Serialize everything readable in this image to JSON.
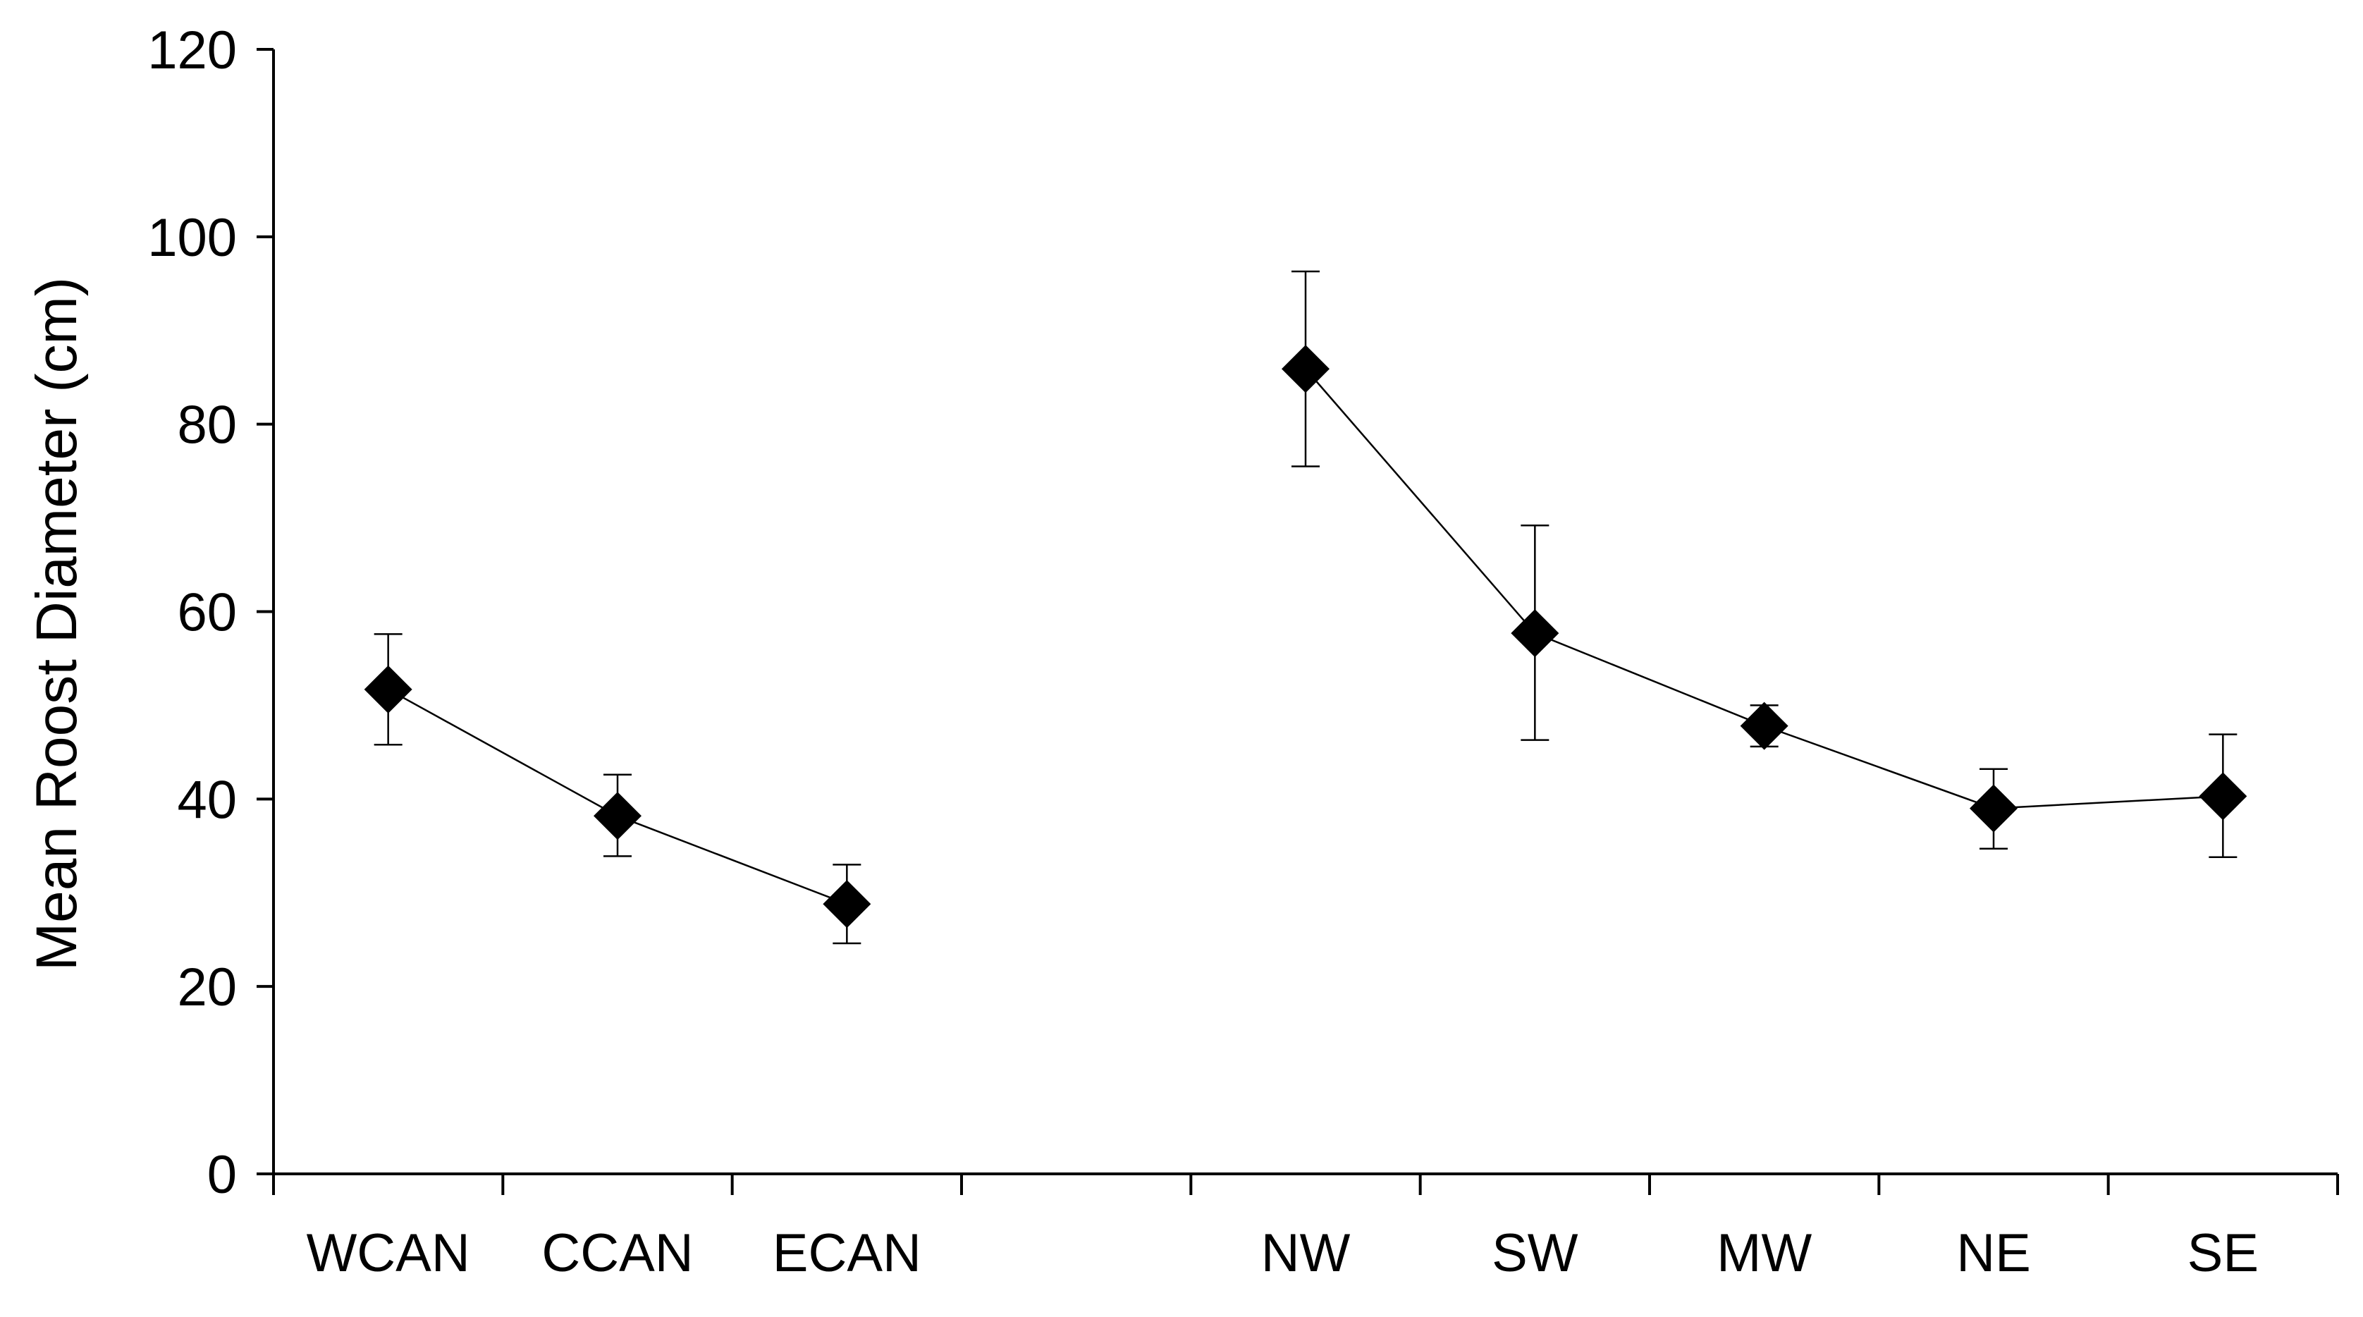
{
  "chart_data": {
    "type": "line",
    "title": "",
    "xlabel": "",
    "ylabel": "Mean Roost Diameter (cm)",
    "ylim": [
      0,
      120
    ],
    "yticks": [
      0,
      20,
      40,
      60,
      80,
      100,
      120
    ],
    "categories": [
      "WCAN",
      "CCAN",
      "ECAN",
      "",
      "NW",
      "SW",
      "MW",
      "NE",
      "SE"
    ],
    "grid": false,
    "legend": "none",
    "marker": "diamond",
    "color": "#000000",
    "segments": [
      [
        0,
        1,
        2
      ],
      [
        4,
        5,
        6,
        7,
        8
      ]
    ],
    "series": [
      {
        "values": [
          51.7,
          38.2,
          28.8,
          null,
          85.9,
          57.7,
          47.8,
          39.0,
          40.3
        ],
        "error_low": [
          45.8,
          33.9,
          24.6,
          null,
          75.5,
          46.3,
          45.6,
          34.7,
          33.8
        ],
        "error_high": [
          57.6,
          42.6,
          33.0,
          null,
          96.3,
          69.2,
          50.0,
          43.2,
          46.9
        ]
      }
    ]
  }
}
